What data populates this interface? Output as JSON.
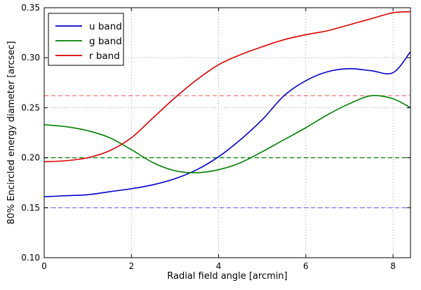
{
  "chart_data": {
    "type": "line",
    "xlabel": "Radial field angle  [arcmin]",
    "ylabel": "80% Encircled energy diameter  [arcsec]",
    "xlim": [
      0,
      8.4
    ],
    "ylim": [
      0.1,
      0.35
    ],
    "xticks": [
      "0",
      "2",
      "4",
      "6",
      "8"
    ],
    "xtick_values": [
      0,
      2,
      4,
      6,
      8
    ],
    "yticks": [
      "0.10",
      "0.15",
      "0.20",
      "0.25",
      "0.30",
      "0.35"
    ],
    "ytick_values": [
      0.1,
      0.15,
      0.2,
      0.25,
      0.3,
      0.35
    ],
    "grid": true,
    "legend_position": "top-left",
    "series": [
      {
        "name": "u band",
        "color": "#0000cc",
        "x": [
          0,
          0.5,
          1.0,
          1.5,
          2.0,
          2.5,
          3.0,
          3.5,
          4.0,
          4.5,
          5.0,
          5.5,
          6.0,
          6.5,
          7.0,
          7.5,
          8.0,
          8.4
        ],
        "y": [
          0.161,
          0.162,
          0.163,
          0.166,
          0.169,
          0.173,
          0.179,
          0.188,
          0.201,
          0.218,
          0.238,
          0.262,
          0.277,
          0.286,
          0.289,
          0.287,
          0.285,
          0.306
        ]
      },
      {
        "name": "g band",
        "color": "#008000",
        "x": [
          0,
          0.5,
          1.0,
          1.5,
          2.0,
          2.5,
          3.0,
          3.5,
          4.0,
          4.5,
          5.0,
          5.5,
          6.0,
          6.5,
          7.0,
          7.5,
          8.0,
          8.4
        ],
        "y": [
          0.233,
          0.231,
          0.227,
          0.22,
          0.208,
          0.195,
          0.187,
          0.185,
          0.188,
          0.195,
          0.206,
          0.218,
          0.23,
          0.243,
          0.254,
          0.262,
          0.259,
          0.25
        ]
      },
      {
        "name": "r band",
        "color": "#dd0000",
        "x": [
          0,
          0.5,
          1.0,
          1.5,
          2.0,
          2.5,
          3.0,
          3.5,
          4.0,
          4.5,
          5.0,
          5.5,
          6.0,
          6.5,
          7.0,
          7.5,
          8.0,
          8.4
        ],
        "y": [
          0.196,
          0.197,
          0.2,
          0.207,
          0.22,
          0.24,
          0.26,
          0.278,
          0.293,
          0.303,
          0.311,
          0.318,
          0.323,
          0.327,
          0.333,
          0.339,
          0.345,
          0.346
        ]
      }
    ],
    "reference_lines": [
      {
        "series": "u band",
        "y": 0.15,
        "color": "#6666ee",
        "style": "dashed"
      },
      {
        "series": "g band",
        "y": 0.2,
        "color": "#008000",
        "style": "dashed"
      },
      {
        "series": "r band",
        "y": 0.262,
        "color": "#ee6666",
        "style": "dashed"
      }
    ]
  }
}
